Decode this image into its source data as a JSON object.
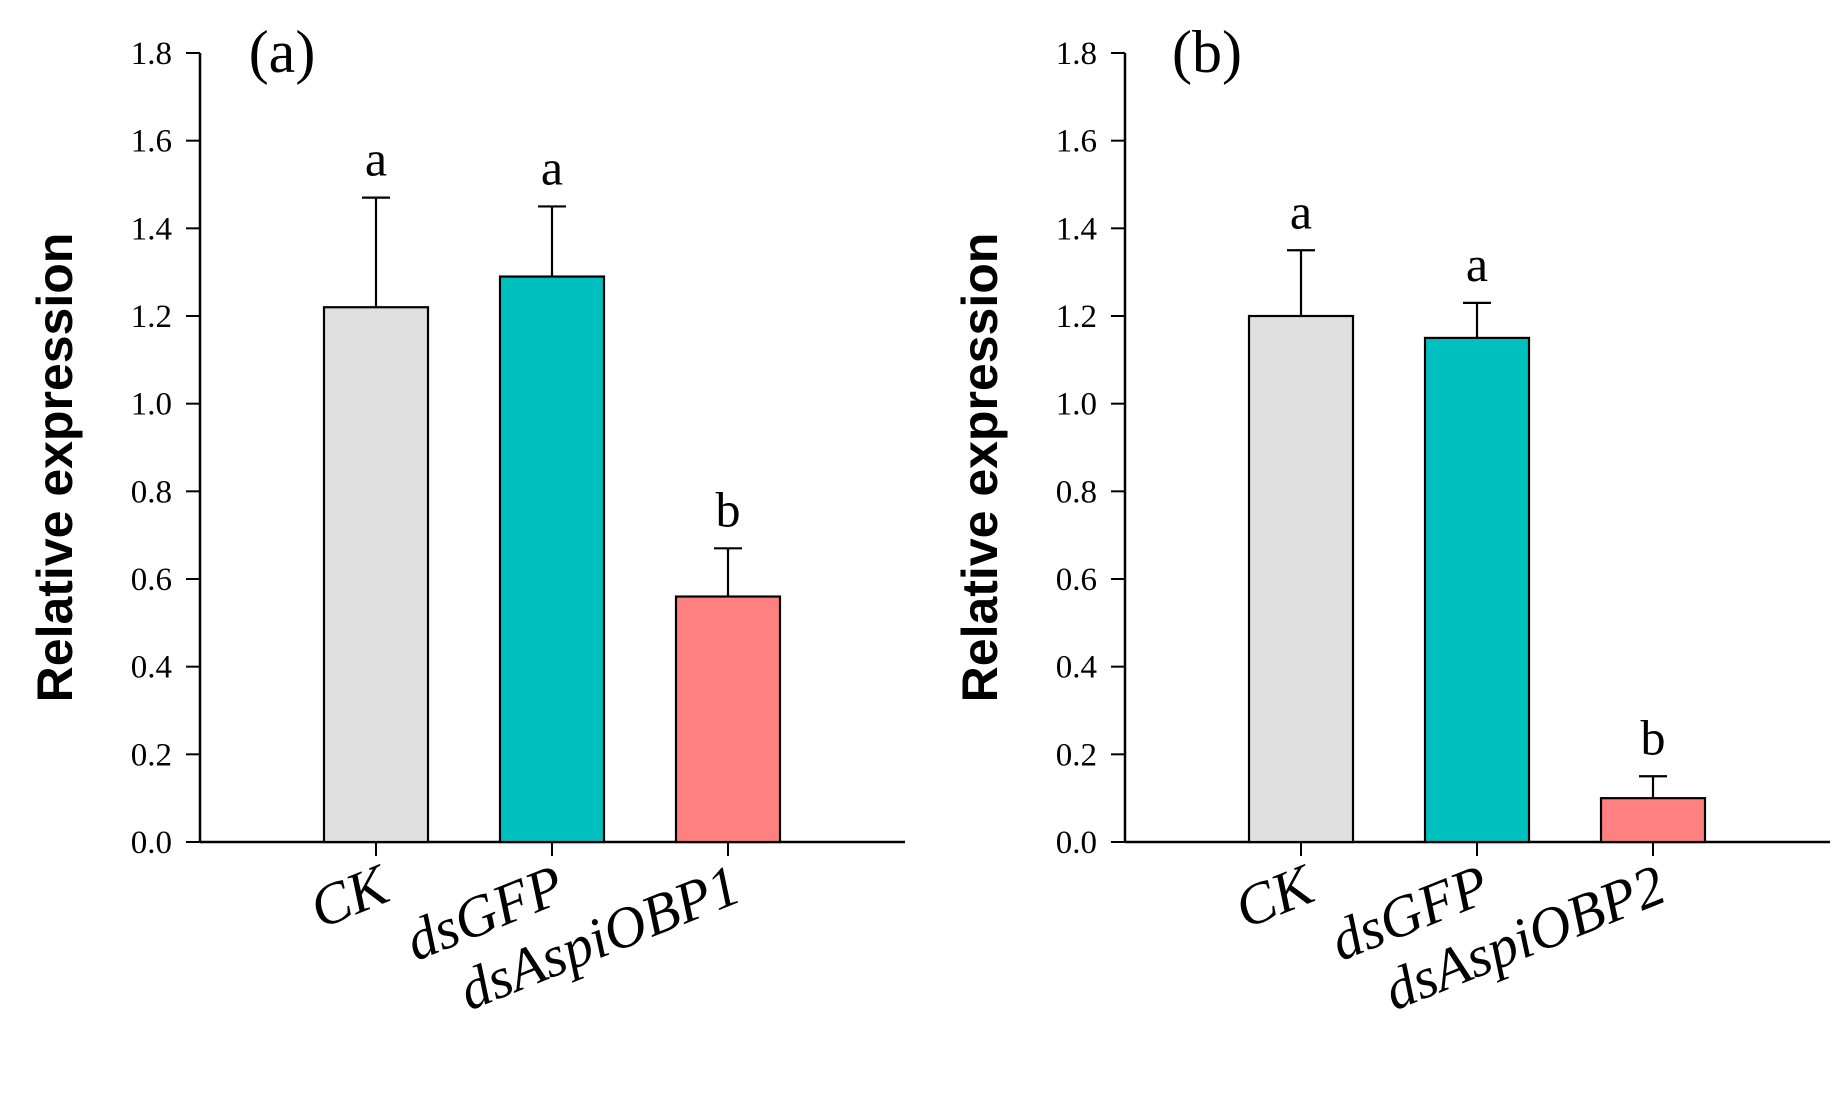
{
  "chart_data": [
    {
      "type": "bar",
      "panel_label": "(a)",
      "ylabel": "Relative expression",
      "ylim": [
        0,
        1.8
      ],
      "yticks": [
        "0.0",
        "0.2",
        "0.4",
        "0.6",
        "0.8",
        "1.0",
        "1.2",
        "1.4",
        "1.6",
        "1.8"
      ],
      "categories": [
        "CK",
        "dsGFP",
        "dsAspiOBP1"
      ],
      "values": [
        1.22,
        1.29,
        0.56
      ],
      "errors": [
        0.25,
        0.16,
        0.11
      ],
      "significance": [
        "a",
        "a",
        "b"
      ],
      "colors": [
        "#e0e0e0",
        "#00bfbf",
        "#ff8080"
      ]
    },
    {
      "type": "bar",
      "panel_label": "(b)",
      "ylabel": "Relative expression",
      "ylim": [
        0,
        1.8
      ],
      "yticks": [
        "0.0",
        "0.2",
        "0.4",
        "0.6",
        "0.8",
        "1.0",
        "1.2",
        "1.4",
        "1.6",
        "1.8"
      ],
      "categories": [
        "CK",
        "dsGFP",
        "dsAspiOBP2"
      ],
      "values": [
        1.2,
        1.15,
        0.1
      ],
      "errors": [
        0.15,
        0.08,
        0.05
      ],
      "significance": [
        "a",
        "a",
        "b"
      ],
      "colors": [
        "#e0e0e0",
        "#00bfbf",
        "#ff8080"
      ]
    }
  ]
}
